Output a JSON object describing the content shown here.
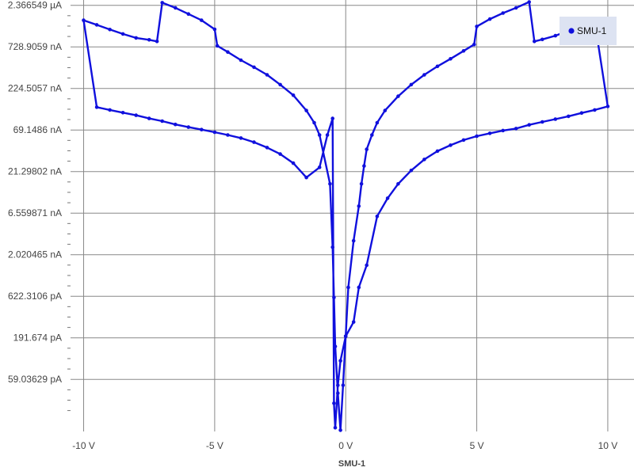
{
  "chart_data": {
    "type": "line",
    "title": "",
    "xlabel": "SMU-1",
    "ylabel": "",
    "y_scale": "log",
    "grid": true,
    "legend": {
      "position": "top-right",
      "entries": [
        "SMU-1"
      ]
    },
    "x_ticks": [
      {
        "value": -10,
        "label": "-10 V"
      },
      {
        "value": -5,
        "label": "-5 V"
      },
      {
        "value": 0,
        "label": "0 V"
      },
      {
        "value": 5,
        "label": "5 V"
      },
      {
        "value": 10,
        "label": "10 V"
      }
    ],
    "y_ticks": [
      {
        "value": 2.366549e-06,
        "label": "2.366549 µA"
      },
      {
        "value": 7.289059e-07,
        "label": "728.9059 nA"
      },
      {
        "value": 2.245057e-07,
        "label": "224.5057 nA"
      },
      {
        "value": 6.91486e-08,
        "label": "69.1486 nA"
      },
      {
        "value": 2.129802e-08,
        "label": "21.29802 nA"
      },
      {
        "value": 6.559871e-09,
        "label": "6.559871 nA"
      },
      {
        "value": 2.020465e-09,
        "label": "2.020465 nA"
      },
      {
        "value": 6.223106e-10,
        "label": "622.3106 pA"
      },
      {
        "value": 1.91674e-10,
        "label": "191.674 pA"
      },
      {
        "value": 5.903629e-11,
        "label": "59.03629 pA"
      }
    ],
    "xlim": [
      -10.5,
      11
    ],
    "ylim": [
      1.35e-11,
      2.75e-06
    ],
    "series": [
      {
        "name": "SMU-1",
        "color": "#1010dd",
        "x": [
          0,
          0.3,
          0.5,
          0.8,
          1.2,
          1.6,
          2.0,
          2.5,
          3.0,
          3.5,
          4.0,
          4.5,
          5.0,
          5.5,
          6.0,
          6.5,
          7.0,
          7.5,
          8.0,
          8.5,
          9.0,
          9.5,
          10,
          9.5,
          9.0,
          8.5,
          8.0,
          7.5,
          7.2,
          7.0,
          6.5,
          6.0,
          5.5,
          5.0,
          4.9,
          4.5,
          4.0,
          3.5,
          3.0,
          2.5,
          2.0,
          1.5,
          1.2,
          1.0,
          0.8,
          0.7,
          0.6,
          0.5,
          0.3,
          0.1,
          0,
          -0.2,
          -0.3,
          -0.4,
          -0.45,
          -0.5,
          -0.7,
          -1.0,
          -1.5,
          -2.0,
          -2.5,
          -3.0,
          -3.5,
          -4.0,
          -4.5,
          -5.0,
          -5.5,
          -6.0,
          -6.5,
          -7.0,
          -7.5,
          -8.0,
          -8.5,
          -9.0,
          -9.5,
          -10,
          -9.5,
          -9.0,
          -8.5,
          -8.0,
          -7.5,
          -7.2,
          -7.0,
          -6.5,
          -6.0,
          -5.5,
          -5.0,
          -4.9,
          -4.5,
          -4.0,
          -3.5,
          -3.0,
          -2.5,
          -2.0,
          -1.5,
          -1.2,
          -1.0,
          -0.6,
          -0.5,
          -0.45,
          -0.4,
          -0.3,
          -0.2,
          -0.1,
          0
        ],
        "y": [
          2e-10,
          3e-10,
          8e-10,
          1.5e-09,
          6e-09,
          1e-08,
          1.5e-08,
          2.2e-08,
          3e-08,
          3.8e-08,
          4.5e-08,
          5.2e-08,
          5.8e-08,
          6.3e-08,
          6.8e-08,
          7.2e-08,
          8e-08,
          8.7e-08,
          9.4e-08,
          1.02e-07,
          1.12e-07,
          1.22e-07,
          1.35e-07,
          1.5e-06,
          1.3e-06,
          1.15e-06,
          1e-06,
          9e-07,
          8.5e-07,
          2.6e-06,
          2.2e-06,
          1.9e-06,
          1.6e-06,
          1.3e-06,
          7.8e-07,
          6.5e-07,
          5.2e-07,
          4.2e-07,
          3.3e-07,
          2.5e-07,
          1.8e-07,
          1.2e-07,
          8.5e-08,
          6e-08,
          4e-08,
          2.5e-08,
          1.5e-08,
          8e-09,
          3e-09,
          8e-10,
          2e-10,
          1e-10,
          5e-11,
          1.5e-11,
          3e-11,
          9.6e-08,
          6e-08,
          2.4e-08,
          1.8e-08,
          2.7e-08,
          3.5e-08,
          4.2e-08,
          4.9e-08,
          5.5e-08,
          6e-08,
          6.5e-08,
          7e-08,
          7.5e-08,
          8.1e-08,
          8.9e-08,
          9.6e-08,
          1.05e-07,
          1.13e-07,
          1.22e-07,
          1.32e-07,
          1.55e-06,
          1.36e-06,
          1.19e-06,
          1.05e-06,
          9.4e-07,
          8.9e-07,
          8.5e-07,
          2.55e-06,
          2.2e-06,
          1.85e-06,
          1.55e-06,
          1.2e-06,
          7.5e-07,
          6.3e-07,
          5e-07,
          4.1e-07,
          3.3e-07,
          2.5e-07,
          1.85e-07,
          1.2e-07,
          8.5e-08,
          6e-08,
          1.5e-08,
          2.5e-09,
          6e-10,
          1.5e-10,
          4e-11,
          1.4e-11,
          5e-11,
          2e-10
        ]
      }
    ]
  }
}
